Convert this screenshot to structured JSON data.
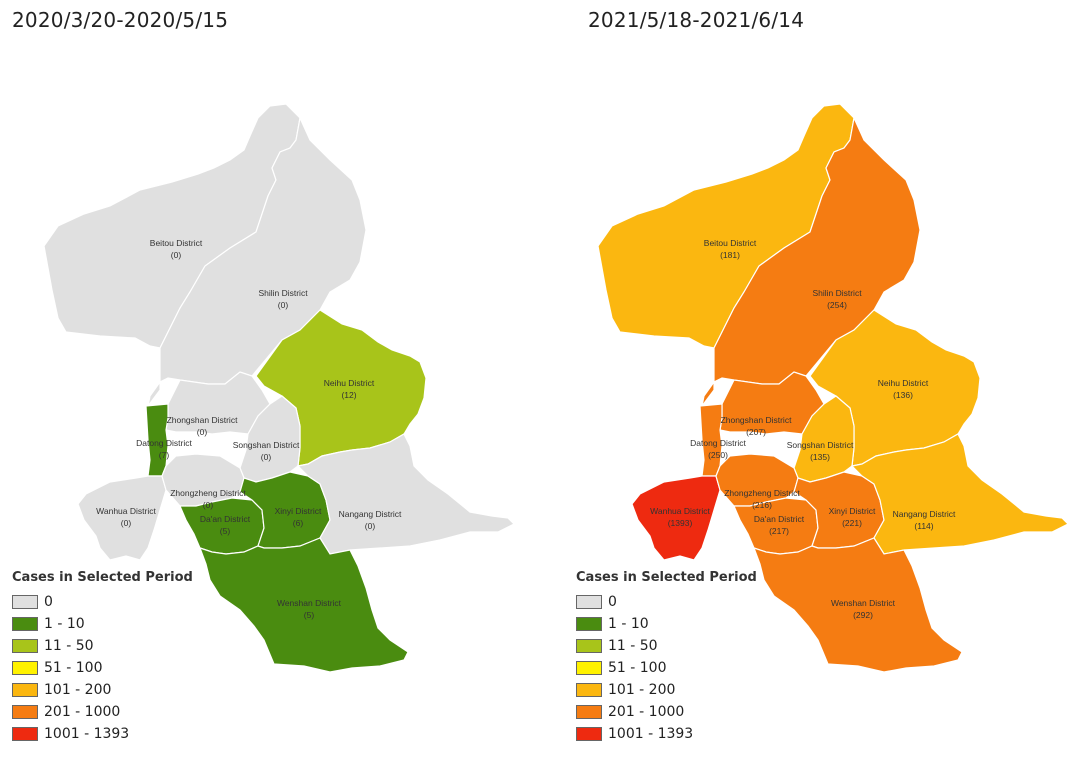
{
  "legend": {
    "title": "Cases in Selected Period",
    "bins": [
      {
        "label": "0",
        "color": "#e0e0e0"
      },
      {
        "label": "1 - 10",
        "color": "#4a8c10"
      },
      {
        "label": "11 - 50",
        "color": "#a8c41a"
      },
      {
        "label": "51 - 100",
        "color": "#fff200"
      },
      {
        "label": "101 - 200",
        "color": "#fbb710"
      },
      {
        "label": "201 - 1000",
        "color": "#f57c12"
      },
      {
        "label": "1001 - 1393",
        "color": "#ee2a10"
      }
    ]
  },
  "maps": [
    {
      "period": "2020/3/20-2020/5/15",
      "districts": {
        "beitou": {
          "name": "Beitou District",
          "cases": "(0)",
          "bin": 0
        },
        "shilin": {
          "name": "Shilin District",
          "cases": "(0)",
          "bin": 0
        },
        "neihu": {
          "name": "Neihu District",
          "cases": "(12)",
          "bin": 2
        },
        "zhongshan": {
          "name": "Zhongshan District",
          "cases": "(0)",
          "bin": 0
        },
        "datong": {
          "name": "Datong District",
          "cases": "(7)",
          "bin": 1
        },
        "songshan": {
          "name": "Songshan District",
          "cases": "(0)",
          "bin": 0
        },
        "wanhua": {
          "name": "Wanhua District",
          "cases": "(0)",
          "bin": 0
        },
        "zhongzheng": {
          "name": "Zhongzheng District",
          "cases": "(0)",
          "bin": 0
        },
        "daan": {
          "name": "Da'an District",
          "cases": "(5)",
          "bin": 1
        },
        "xinyi": {
          "name": "Xinyi District",
          "cases": "(6)",
          "bin": 1
        },
        "nangang": {
          "name": "Nangang District",
          "cases": "(0)",
          "bin": 0
        },
        "wenshan": {
          "name": "Wenshan District",
          "cases": "(5)",
          "bin": 1
        }
      }
    },
    {
      "period": "2021/5/18-2021/6/14",
      "districts": {
        "beitou": {
          "name": "Beitou District",
          "cases": "(181)",
          "bin": 4
        },
        "shilin": {
          "name": "Shilin District",
          "cases": "(254)",
          "bin": 5
        },
        "neihu": {
          "name": "Neihu District",
          "cases": "(136)",
          "bin": 4
        },
        "zhongshan": {
          "name": "Zhongshan District",
          "cases": "(207)",
          "bin": 5
        },
        "datong": {
          "name": "Datong District",
          "cases": "(250)",
          "bin": 5
        },
        "songshan": {
          "name": "Songshan District",
          "cases": "(135)",
          "bin": 4
        },
        "wanhua": {
          "name": "Wanhua District",
          "cases": "(1393)",
          "bin": 6
        },
        "zhongzheng": {
          "name": "Zhongzheng District",
          "cases": "(216)",
          "bin": 5
        },
        "daan": {
          "name": "Da'an District",
          "cases": "(217)",
          "bin": 5
        },
        "xinyi": {
          "name": "Xinyi District",
          "cases": "(221)",
          "bin": 5
        },
        "nangang": {
          "name": "Nangang District",
          "cases": "(114)",
          "bin": 4
        },
        "wenshan": {
          "name": "Wenshan District",
          "cases": "(292)",
          "bin": 5
        }
      }
    }
  ]
}
